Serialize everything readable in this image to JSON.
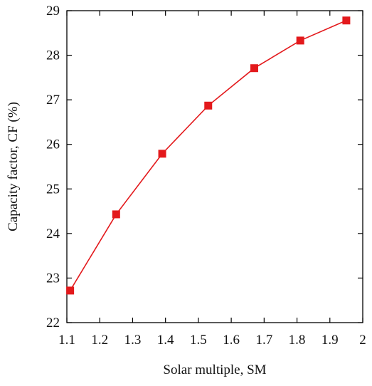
{
  "chart_data": {
    "type": "line",
    "xlabel": "Solar multiple, SM",
    "ylabel": "Capacity factor, CF (%)",
    "x": [
      1.11,
      1.25,
      1.39,
      1.53,
      1.67,
      1.81,
      1.95
    ],
    "series": [
      {
        "name": "Capacity factor",
        "color": "#e3191c",
        "values": [
          22.72,
          24.43,
          25.79,
          26.87,
          27.71,
          28.33,
          28.78
        ]
      }
    ],
    "xlim": [
      1.1,
      2
    ],
    "xticks": [
      1.1,
      1.2,
      1.3,
      1.4,
      1.5,
      1.6,
      1.7,
      1.8,
      1.9,
      2
    ],
    "ylim": [
      22,
      29
    ],
    "yticks": [
      22,
      23,
      24,
      25,
      26,
      27,
      28,
      29
    ]
  }
}
